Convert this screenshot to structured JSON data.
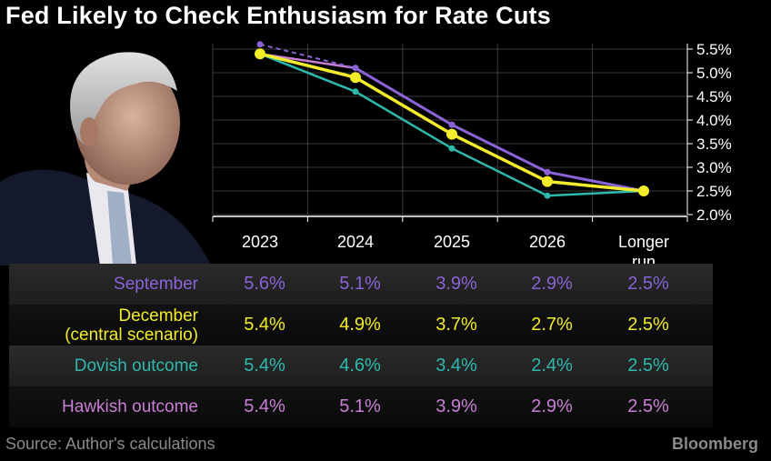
{
  "title": "Fed Likely to Check Enthusiasm for Rate Cuts",
  "colors": {
    "september": "#8a63d8",
    "december": "#f2ec2b",
    "dovish": "#2fb9ad",
    "hawkish": "#c97fd6",
    "grid": "#3a3a3a"
  },
  "chart_data": {
    "type": "line",
    "categories": [
      "2023",
      "2024",
      "2025",
      "2026",
      "Longer run"
    ],
    "ylim": [
      2.0,
      5.5
    ],
    "yticks": [
      "5.5%",
      "5.0%",
      "4.5%",
      "4.0%",
      "3.5%",
      "3.0%",
      "2.5%",
      "2.0%"
    ],
    "series": [
      {
        "name": "September",
        "values": [
          5.6,
          5.1,
          3.9,
          2.9,
          2.5
        ]
      },
      {
        "name": "December (central scenario)",
        "values": [
          5.4,
          4.9,
          3.7,
          2.7,
          2.5
        ]
      },
      {
        "name": "Dovish outcome",
        "values": [
          5.4,
          4.6,
          3.4,
          2.4,
          2.5
        ]
      },
      {
        "name": "Hawkish outcome",
        "values": [
          5.4,
          5.1,
          3.9,
          2.9,
          2.5
        ]
      }
    ]
  },
  "table": {
    "rows": [
      {
        "label_lines": [
          "September"
        ],
        "values": [
          "5.6%",
          "5.1%",
          "3.9%",
          "2.9%",
          "2.5%"
        ]
      },
      {
        "label_lines": [
          "December",
          "(central scenario)"
        ],
        "values": [
          "5.4%",
          "4.9%",
          "3.7%",
          "2.7%",
          "2.5%"
        ]
      },
      {
        "label_lines": [
          "Dovish outcome"
        ],
        "values": [
          "5.4%",
          "4.6%",
          "3.4%",
          "2.4%",
          "2.5%"
        ]
      },
      {
        "label_lines": [
          "Hawkish outcome"
        ],
        "values": [
          "5.4%",
          "5.1%",
          "3.9%",
          "2.9%",
          "2.5%"
        ]
      }
    ]
  },
  "footer": {
    "source": "Source: Author's calculations",
    "brand": "Bloomberg"
  }
}
